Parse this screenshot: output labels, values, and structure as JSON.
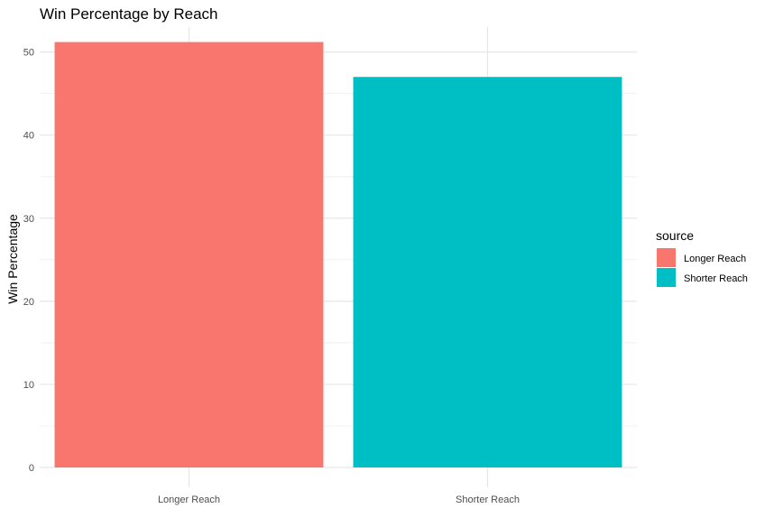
{
  "chart_data": {
    "type": "bar",
    "title": "Win Percentage by Reach",
    "xlabel": "",
    "ylabel": "Win Percentage",
    "categories": [
      "Longer Reach",
      "Shorter Reach"
    ],
    "values": [
      51.2,
      47.0
    ],
    "colors": [
      "#F8766D",
      "#00BFC4"
    ],
    "ylim": [
      0,
      53
    ],
    "yticks": [
      0,
      10,
      20,
      30,
      40,
      50
    ],
    "grid": true,
    "legend": {
      "title": "source",
      "position": "right",
      "entries": [
        {
          "label": "Longer Reach",
          "color": "#F8766D"
        },
        {
          "label": "Shorter Reach",
          "color": "#00BFC4"
        }
      ]
    }
  }
}
